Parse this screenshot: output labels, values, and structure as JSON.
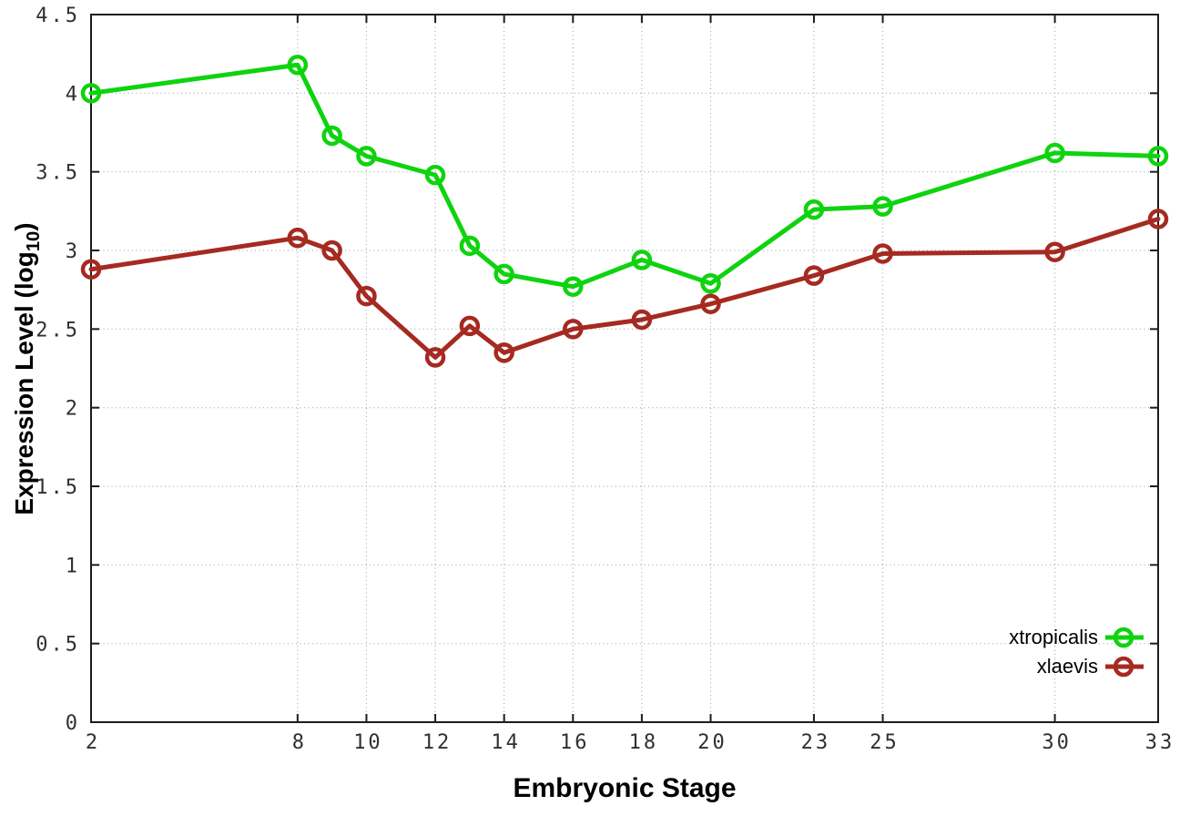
{
  "chart_data": {
    "type": "line",
    "title": "",
    "xlabel": "Embryonic Stage",
    "ylabel": "Expression Level (log10)",
    "ylabel_prefix": "Expression Level (log",
    "ylabel_sub": "10",
    "ylabel_suffix": ")",
    "marker_style": "open-circle",
    "grid": true,
    "legend_position": "bottom-right",
    "xlim": [
      2,
      33
    ],
    "ylim": [
      0,
      4.5
    ],
    "x": [
      2,
      8,
      9,
      10,
      12,
      13,
      14,
      16,
      18,
      20,
      23,
      25,
      30,
      33
    ],
    "series": [
      {
        "name": "xtropicalis",
        "color": "#0fd30f",
        "values": [
          4.0,
          4.18,
          3.73,
          3.6,
          3.48,
          3.03,
          2.85,
          2.77,
          2.94,
          2.79,
          3.26,
          3.28,
          3.62,
          3.6
        ]
      },
      {
        "name": "xlaevis",
        "color": "#a52a21",
        "values": [
          2.88,
          3.08,
          3.0,
          2.71,
          2.32,
          2.52,
          2.35,
          2.5,
          2.56,
          2.66,
          2.84,
          2.98,
          2.99,
          3.2
        ]
      }
    ],
    "xticks": [
      {
        "v": 2,
        "label": "2"
      },
      {
        "v": 8,
        "label": "8"
      },
      {
        "v": 10,
        "label": "10"
      },
      {
        "v": 12,
        "label": "12"
      },
      {
        "v": 14,
        "label": "14"
      },
      {
        "v": 16,
        "label": "16"
      },
      {
        "v": 18,
        "label": "18"
      },
      {
        "v": 20,
        "label": "20"
      },
      {
        "v": 23,
        "label": "23"
      },
      {
        "v": 25,
        "label": "25"
      },
      {
        "v": 30,
        "label": "30"
      },
      {
        "v": 33,
        "label": "33"
      }
    ],
    "yticks": [
      {
        "v": 0,
        "label": "0"
      },
      {
        "v": 0.5,
        "label": "0.5"
      },
      {
        "v": 1,
        "label": "1"
      },
      {
        "v": 1.5,
        "label": "1.5"
      },
      {
        "v": 2,
        "label": "2"
      },
      {
        "v": 2.5,
        "label": "2.5"
      },
      {
        "v": 3,
        "label": "3"
      },
      {
        "v": 3.5,
        "label": "3.5"
      },
      {
        "v": 4,
        "label": "4"
      },
      {
        "v": 4.5,
        "label": "4.5"
      }
    ],
    "colors": {
      "axis": "#1c1c1c",
      "grid": "#ababab",
      "tick_label": "#303030",
      "title": "#000000"
    }
  }
}
